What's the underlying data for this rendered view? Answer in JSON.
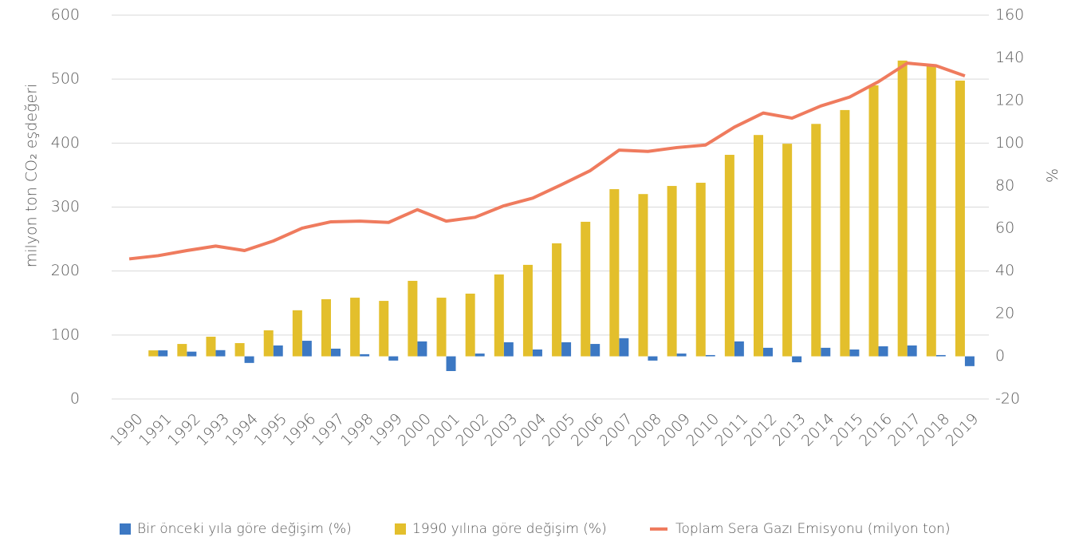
{
  "chart_data": {
    "type": "bar",
    "y_label": "milyon ton CO₂ eşdeğeri",
    "y2_label": "%",
    "categories": [
      "1990",
      "1991",
      "1992",
      "1993",
      "1994",
      "1995",
      "1996",
      "1997",
      "1998",
      "1999",
      "2000",
      "2001",
      "2002",
      "2003",
      "2004",
      "2005",
      "2006",
      "2007",
      "2008",
      "2009",
      "2010",
      "2011",
      "2012",
      "2013",
      "2014",
      "2015",
      "2016",
      "2017",
      "2018",
      "2019"
    ],
    "ylim": [
      0,
      600
    ],
    "yticks": [
      0,
      100,
      200,
      300,
      400,
      500,
      600
    ],
    "y2lim": [
      -20,
      160
    ],
    "y2ticks": [
      -20,
      0,
      20,
      40,
      60,
      80,
      100,
      120,
      140,
      160
    ],
    "grid": true,
    "legend": "bottom",
    "series": [
      {
        "name": "Bir önceki yıla göre değişim (%)",
        "type": "bar",
        "axis": "y2",
        "color": "#3c78c3",
        "values": [
          null,
          2.8,
          2.2,
          2.9,
          -3.1,
          5.1,
          7.3,
          3.6,
          1.0,
          -2.0,
          7.0,
          -6.9,
          1.3,
          6.6,
          3.2,
          6.6,
          5.8,
          8.5,
          -2.0,
          1.3,
          0.6,
          7.0,
          4.0,
          -2.8,
          4.0,
          3.2,
          4.7,
          5.1,
          0.6,
          -4.6
        ]
      },
      {
        "name": "1990 yılına göre değişim (%)",
        "type": "bar",
        "axis": "y2",
        "color": "#e3bf2c",
        "values": [
          0,
          2.8,
          5.8,
          9.2,
          6.2,
          12.2,
          21.6,
          26.8,
          27.5,
          26.0,
          35.4,
          27.5,
          29.4,
          38.4,
          42.9,
          53.0,
          63.1,
          78.4,
          76.1,
          79.9,
          81.4,
          94.5,
          103.8,
          99.7,
          109.0,
          115.5,
          127.1,
          138.7,
          136.1,
          129.3
        ]
      },
      {
        "name": "Toplam Sera Gazı Emisyonu (milyon ton)",
        "type": "line",
        "axis": "y",
        "color": "#ef7b5e",
        "values": [
          219,
          224,
          232,
          239,
          232,
          247,
          267,
          277,
          278,
          276,
          296,
          278,
          284,
          302,
          314,
          335,
          357,
          389,
          387,
          393,
          397,
          425,
          447,
          439,
          458,
          472,
          496,
          525,
          521,
          505
        ]
      }
    ]
  }
}
